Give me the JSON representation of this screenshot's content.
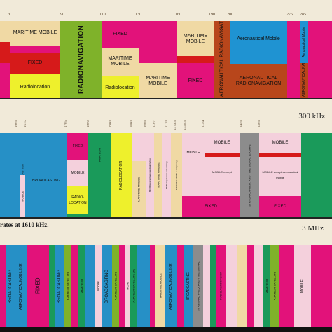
{
  "row1": {
    "ticks": [
      "70",
      "90",
      "110",
      "130",
      "160",
      "190",
      "200",
      "275",
      "285"
    ],
    "labels": {
      "maritime1": "MARITIME MOBILE",
      "fixed1": "FIXED",
      "radiolocation": "Radiolocation",
      "radionav": "RADIONAVIGATION",
      "fixed2": "FIXED",
      "maritime2": "MARITIME MOBILE",
      "radiolocation2": "Radiolocation",
      "maritime3": "MARITIME MOBILE",
      "maritime4": "MARITIME MOBILE",
      "fixed3": "FIXED",
      "aero_radionav_v": "AERONAUTICAL RADIONAVIGATION",
      "aero_mobile": "Aeronautical Mobile",
      "aero_radionav": "AERONAUTICAL RADIONAVIGATION",
      "aero_r1": "Aeronautical Mobile",
      "aero_r2": "AERONAUTICAL RADIONAVIGATION"
    }
  },
  "row2": {
    "scale": "300 kHz",
    "ticks": [
      "1605",
      "1615",
      "1705",
      "1800",
      "1900",
      "2000",
      "2065",
      "2107",
      "2170",
      "2173.5",
      "2190.5",
      "2194",
      "2495",
      "2505"
    ],
    "labels": {
      "broadcasting": "BROADCASTING",
      "mobile_small": "MOBILE",
      "fixed": "FIXED",
      "mobile": "MOBILE",
      "radiolocation_box": "RADIO-LOCATION",
      "amateur": "AMATEUR",
      "radiolocation": "RADIOLOCATION",
      "maritime_mobile": "MARITIME MOBILE",
      "mobile_except": "MOBILE except aeronautical mobile",
      "maritime_mobile2": "MARITIME MOBILE",
      "mobile_distress": "MOBILE (distress and calling)",
      "maritime_telephony": "MARITIME MOBILE (telephony)",
      "mobile_center": "MOBILE",
      "mobile_except2": "MOBILE except aeronautical mobile",
      "fixed_center": "FIXED",
      "standard_freq": "STANDARD FREQ. AND TIME SIGNAL (2500kHz)",
      "mobile_right": "MOBILE",
      "mobile_except3": "MOBILE except aeronautical mobile",
      "fixed_right": "FIXED"
    },
    "note": "rates at 1610 kHz."
  },
  "row3": {
    "scale": "3 MHz",
    "labels": {
      "broadcasting": "BROADCASTING",
      "aero_mobile_r": "AERONAUTICAL MOBILE (R)",
      "fixed": "FIXED",
      "broadcasting2": "BROADCASTING",
      "amateur_sat": "AMATEUR SATELLITE",
      "amateur": "AMATEUR",
      "mobile": "Mobile",
      "broadcasting3": "BROADCASTING",
      "amateur_sat2": "AMATEUR SATELLITE",
      "mobile2": "Mobile",
      "amateur_sat3": "AMATEUR SATELLITE (R)",
      "maritime": "MARITIME MOBILE",
      "aero_mobile_r2": "AERONAUTICAL MOBILE (R)",
      "broadcasting4": "BROADCASTING",
      "std_freq": "STANDARD FREQ. AND TIME SIGNAL",
      "radioastronomy": "RADIO ASTRONOMY",
      "amateur2": "AMATEUR",
      "mobile3": "MOBILE",
      "amateur_sat4": "AMATEUR SATELLITE"
    }
  }
}
